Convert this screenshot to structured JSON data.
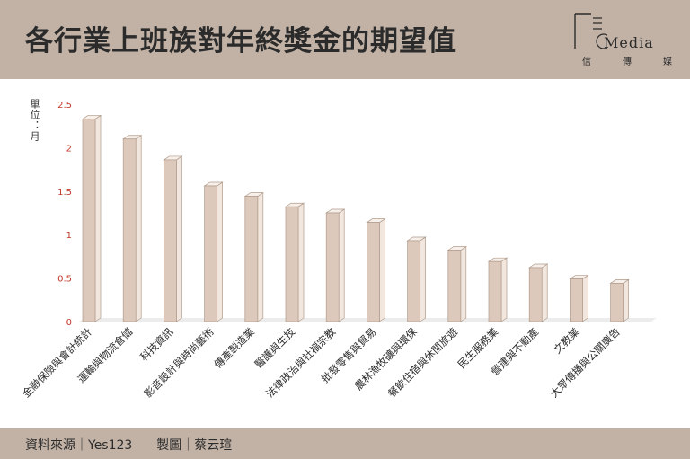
{
  "header": {
    "title": "各行業上班族對年終獎金的期望值",
    "logo_word": "Media",
    "logo_sub": [
      "信",
      "傳",
      "媒"
    ]
  },
  "unit_label": "單位：月",
  "footer": {
    "source_label": "資料來源｜Yes123",
    "credit_label": "製圖｜蔡云瑄"
  },
  "colors": {
    "bar_front": "#ddc9bb",
    "bar_side": "#f1e7df",
    "bar_top": "#f7f0ea",
    "bar_edge": "#b09a8a",
    "tick_label": "#c0392b",
    "banner": "#c2b2a6"
  },
  "chart_data": {
    "type": "bar",
    "categories": [
      "金融保險與會計統計",
      "運輸與物流倉儲",
      "科技資訊",
      "影音設計與時尚藝術",
      "傳產製造業",
      "醫護與生技",
      "法律政治與社福宗教",
      "批發零售與貿易",
      "農林漁牧礦與環保",
      "餐飲住宿與休閒旅遊",
      "民生服務業",
      "營建與不動產",
      "文教業",
      "大眾傳播與公關廣告"
    ],
    "values": [
      2.33,
      2.1,
      1.86,
      1.56,
      1.44,
      1.32,
      1.25,
      1.14,
      0.93,
      0.82,
      0.69,
      0.62,
      0.49,
      0.44
    ],
    "yticks": [
      "0",
      "0.5",
      "1",
      "1.5",
      "2",
      "2.5"
    ],
    "ylim": [
      0,
      2.5
    ],
    "title": "各行業上班族對年終獎金的期望值",
    "ylabel": "單位：月",
    "grid": false,
    "legend": "none"
  }
}
